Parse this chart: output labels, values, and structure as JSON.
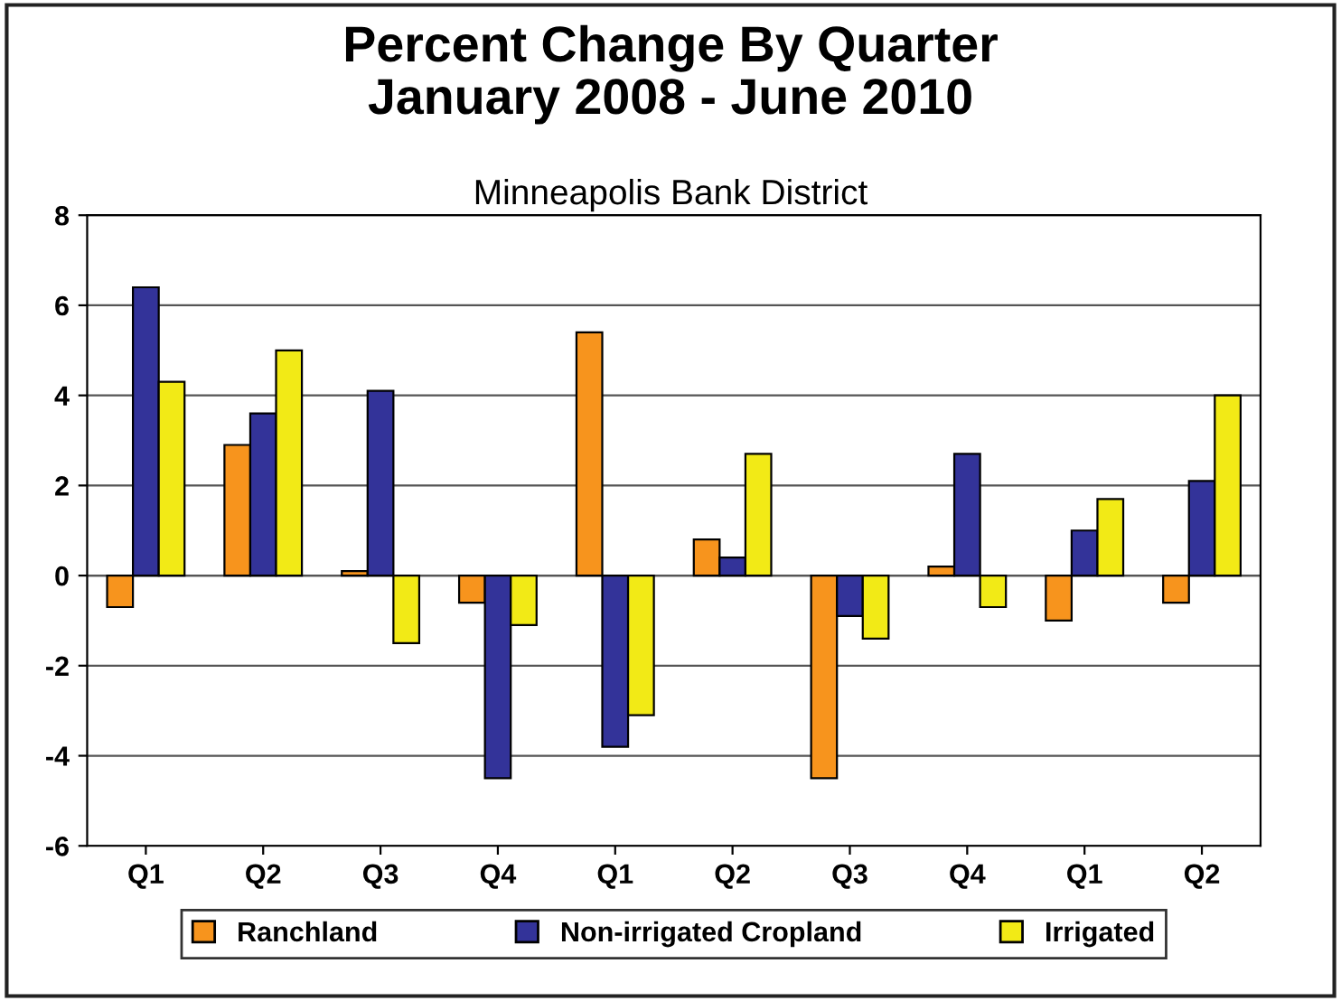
{
  "chart_data": {
    "type": "bar",
    "title": "Percent Change By Quarter\nJanuary 2008 - June 2010",
    "subtitle": "Minneapolis Bank District",
    "categories": [
      "Q1",
      "Q2",
      "Q3",
      "Q4",
      "Q1",
      "Q2",
      "Q3",
      "Q4",
      "Q1",
      "Q2"
    ],
    "series": [
      {
        "name": "Ranchland",
        "color": "#f7941d",
        "values": [
          -0.7,
          2.9,
          0.1,
          -0.6,
          5.4,
          0.8,
          -4.5,
          0.2,
          -1.0,
          -0.6
        ]
      },
      {
        "name": "Non-irrigated Cropland",
        "color": "#333399",
        "values": [
          6.4,
          3.6,
          4.1,
          -4.5,
          -3.8,
          0.4,
          -0.9,
          2.7,
          1.0,
          2.1
        ]
      },
      {
        "name": "Irrigated",
        "color": "#f2ea16",
        "values": [
          4.3,
          5.0,
          -1.5,
          -1.1,
          -3.1,
          2.7,
          -1.4,
          -0.7,
          1.7,
          4.0
        ]
      }
    ],
    "ylim": [
      -6,
      8
    ],
    "yticks": [
      -6,
      -4,
      -2,
      0,
      2,
      4,
      6,
      8
    ],
    "grid": "y",
    "legend": "bottom"
  }
}
